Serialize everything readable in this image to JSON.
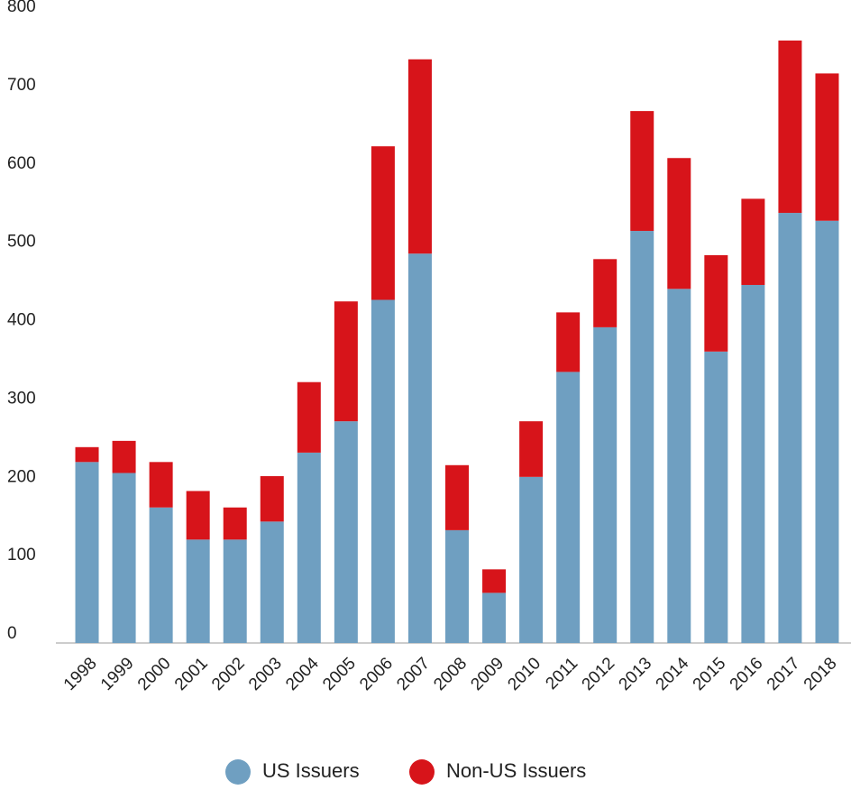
{
  "chart_data": {
    "type": "stacked_bar",
    "categories": [
      "1998",
      "1999",
      "2000",
      "2001",
      "2002",
      "2003",
      "2004",
      "2005",
      "2006",
      "2007",
      "2008",
      "2009",
      "2010",
      "2011",
      "2012",
      "2013",
      "2014",
      "2015",
      "2016",
      "2017",
      "2018"
    ],
    "series": [
      {
        "name": "US Issuers",
        "color": "#6f9fc1",
        "values": [
          231,
          217,
          173,
          132,
          132,
          155,
          243,
          283,
          438,
          497,
          144,
          64,
          212,
          346,
          403,
          526,
          452,
          372,
          457,
          549,
          539
        ]
      },
      {
        "name": "Non-US Issuers",
        "color": "#d7141a",
        "values": [
          19,
          41,
          58,
          62,
          41,
          58,
          90,
          153,
          196,
          248,
          83,
          30,
          71,
          76,
          87,
          153,
          167,
          123,
          110,
          220,
          188
        ]
      }
    ],
    "ylim": [
      0,
      800
    ],
    "yticks": [
      0,
      100,
      200,
      300,
      400,
      500,
      600,
      700,
      800
    ],
    "grid": false,
    "legend": "bottom"
  }
}
